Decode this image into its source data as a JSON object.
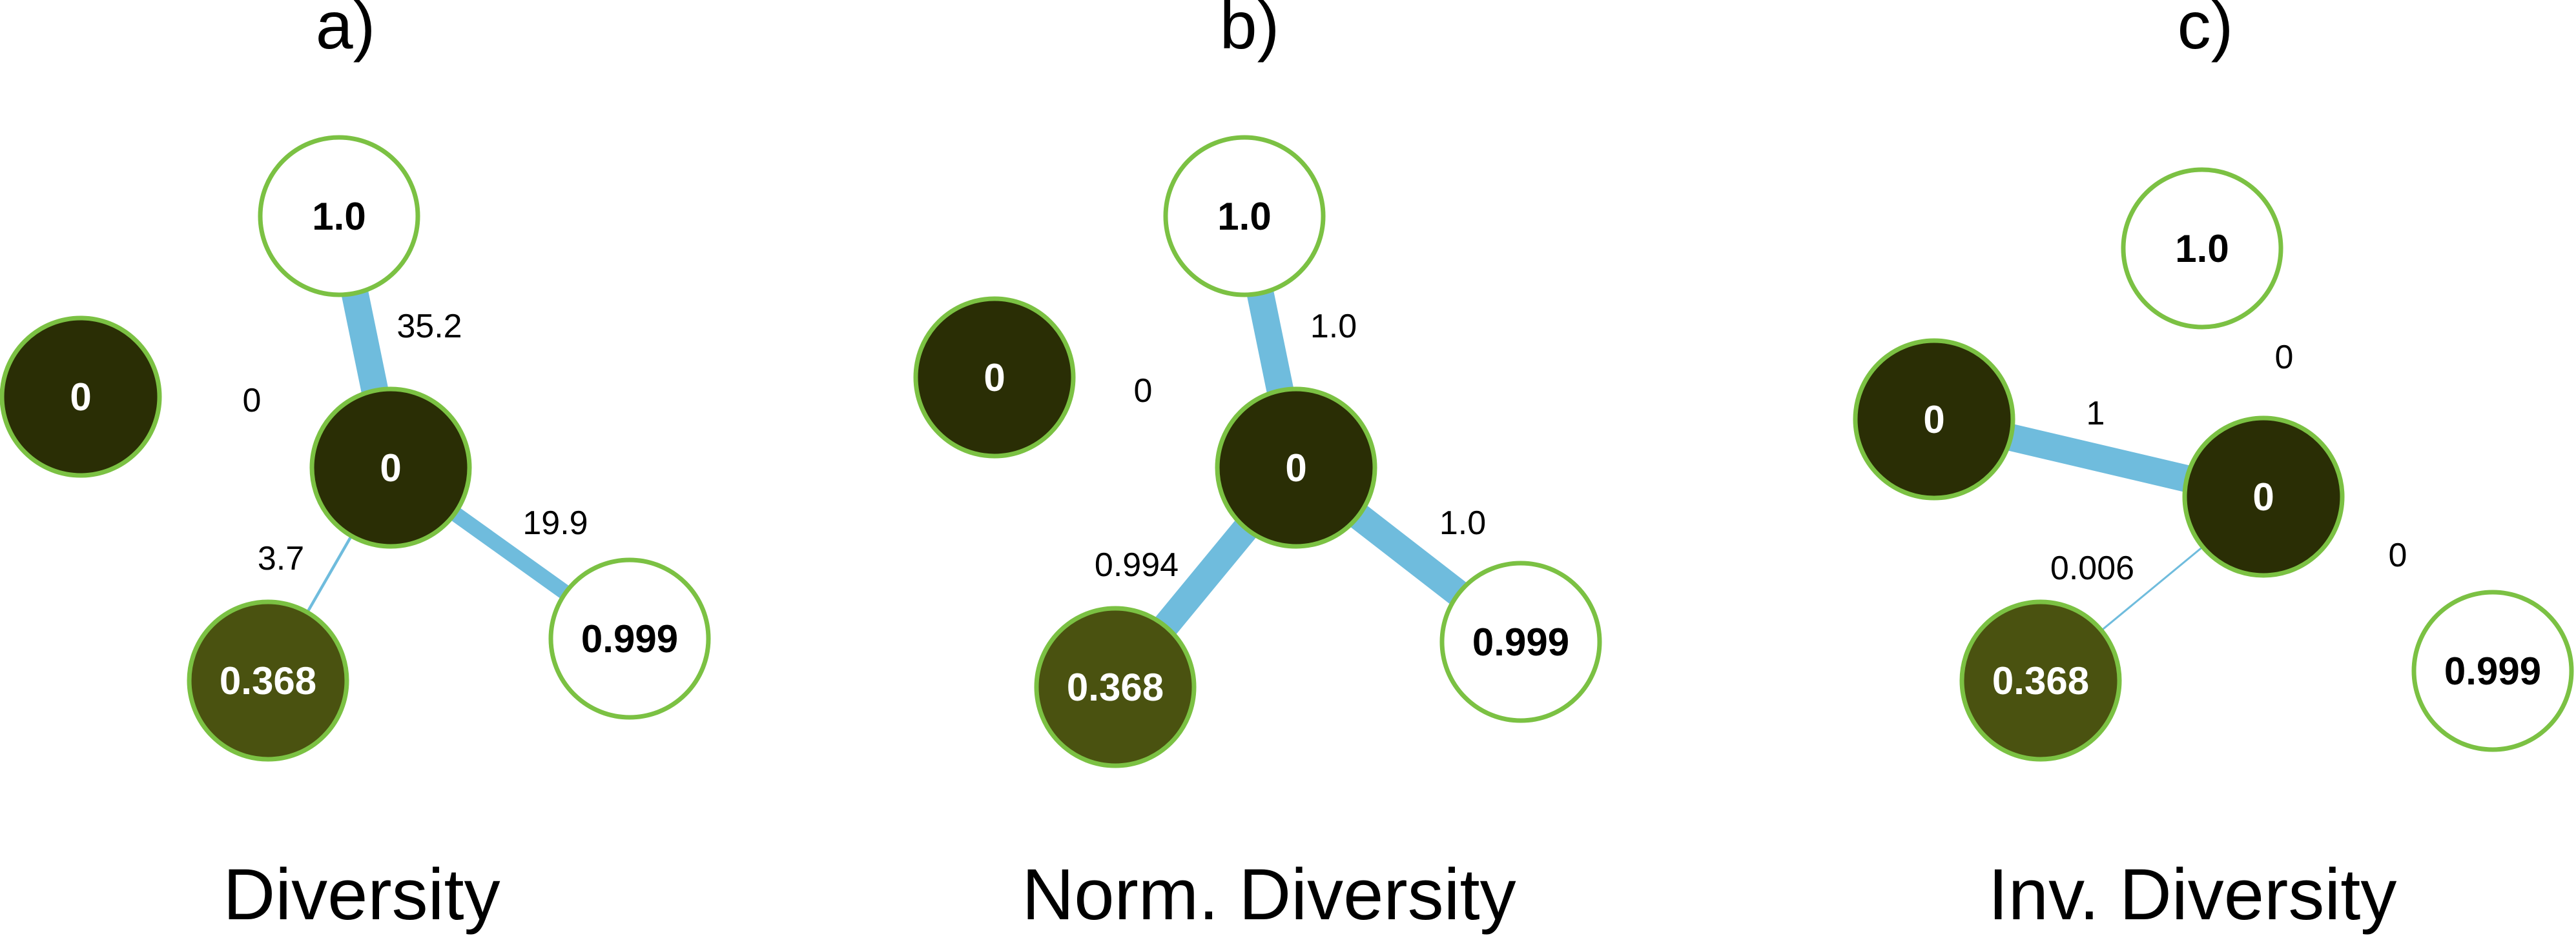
{
  "colors": {
    "node_stroke": "#7bc143",
    "edge": "#6fbcdd",
    "node_dark": "#2a2e05",
    "node_olive": "#4a5210",
    "node_white": "#ffffff",
    "text_dark": "#000000",
    "text_light": "#ffffff"
  },
  "panels": [
    {
      "label": "a)",
      "caption": "Diversity",
      "nodes": [
        {
          "id": "top",
          "label": "1.0",
          "fill": "white"
        },
        {
          "id": "left",
          "label": "0",
          "fill": "dark"
        },
        {
          "id": "center",
          "label": "0",
          "fill": "dark"
        },
        {
          "id": "bottom",
          "label": "0.368",
          "fill": "olive"
        },
        {
          "id": "right",
          "label": "0.999",
          "fill": "white"
        }
      ],
      "edges": [
        {
          "from": "top",
          "to": "center",
          "label": "35.2",
          "weight": 35.2
        },
        {
          "from": "left",
          "to": "center",
          "label": "0",
          "weight": 0
        },
        {
          "from": "center",
          "to": "right",
          "label": "19.9",
          "weight": 19.9
        },
        {
          "from": "center",
          "to": "bottom",
          "label": "3.7",
          "weight": 3.7
        }
      ]
    },
    {
      "label": "b)",
      "caption": "Norm. Diversity",
      "nodes": [
        {
          "id": "top",
          "label": "1.0",
          "fill": "white"
        },
        {
          "id": "left",
          "label": "0",
          "fill": "dark"
        },
        {
          "id": "center",
          "label": "0",
          "fill": "dark"
        },
        {
          "id": "bottom",
          "label": "0.368",
          "fill": "olive"
        },
        {
          "id": "right",
          "label": "0.999",
          "fill": "white"
        }
      ],
      "edges": [
        {
          "from": "top",
          "to": "center",
          "label": "1.0",
          "weight": 1.0
        },
        {
          "from": "left",
          "to": "center",
          "label": "0",
          "weight": 0
        },
        {
          "from": "center",
          "to": "right",
          "label": "1.0",
          "weight": 1.0
        },
        {
          "from": "center",
          "to": "bottom",
          "label": "0.994",
          "weight": 0.994
        }
      ]
    },
    {
      "label": "c)",
      "caption": "Inv. Diversity",
      "nodes": [
        {
          "id": "top",
          "label": "1.0",
          "fill": "white"
        },
        {
          "id": "left",
          "label": "0",
          "fill": "dark"
        },
        {
          "id": "center",
          "label": "0",
          "fill": "dark"
        },
        {
          "id": "bottom",
          "label": "0.368",
          "fill": "olive"
        },
        {
          "id": "right",
          "label": "0.999",
          "fill": "white"
        }
      ],
      "edges": [
        {
          "from": "top",
          "to": "center",
          "label": "0",
          "weight": 0
        },
        {
          "from": "left",
          "to": "center",
          "label": "1",
          "weight": 1
        },
        {
          "from": "center",
          "to": "right",
          "label": "0",
          "weight": 0
        },
        {
          "from": "center",
          "to": "bottom",
          "label": "0.006",
          "weight": 0.006
        }
      ]
    }
  ]
}
